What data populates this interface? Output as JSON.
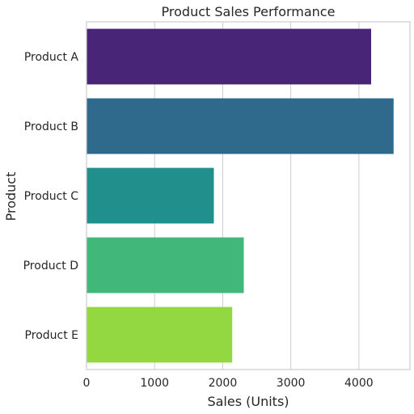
{
  "chart_data": {
    "type": "bar",
    "orientation": "horizontal",
    "title": "Product Sales Performance",
    "xlabel": "Sales (Units)",
    "ylabel": "Product",
    "categories": [
      "Product A",
      "Product B",
      "Product C",
      "Product D",
      "Product E"
    ],
    "values": [
      4180,
      4510,
      1870,
      2310,
      2140
    ],
    "colors": [
      "#482576",
      "#2f6a8d",
      "#21908d",
      "#42b77a",
      "#93d741"
    ],
    "xlim": [
      0,
      4750
    ],
    "xticks": [
      0,
      1000,
      2000,
      3000,
      4000
    ],
    "grid": "vertical",
    "legend": "none"
  }
}
